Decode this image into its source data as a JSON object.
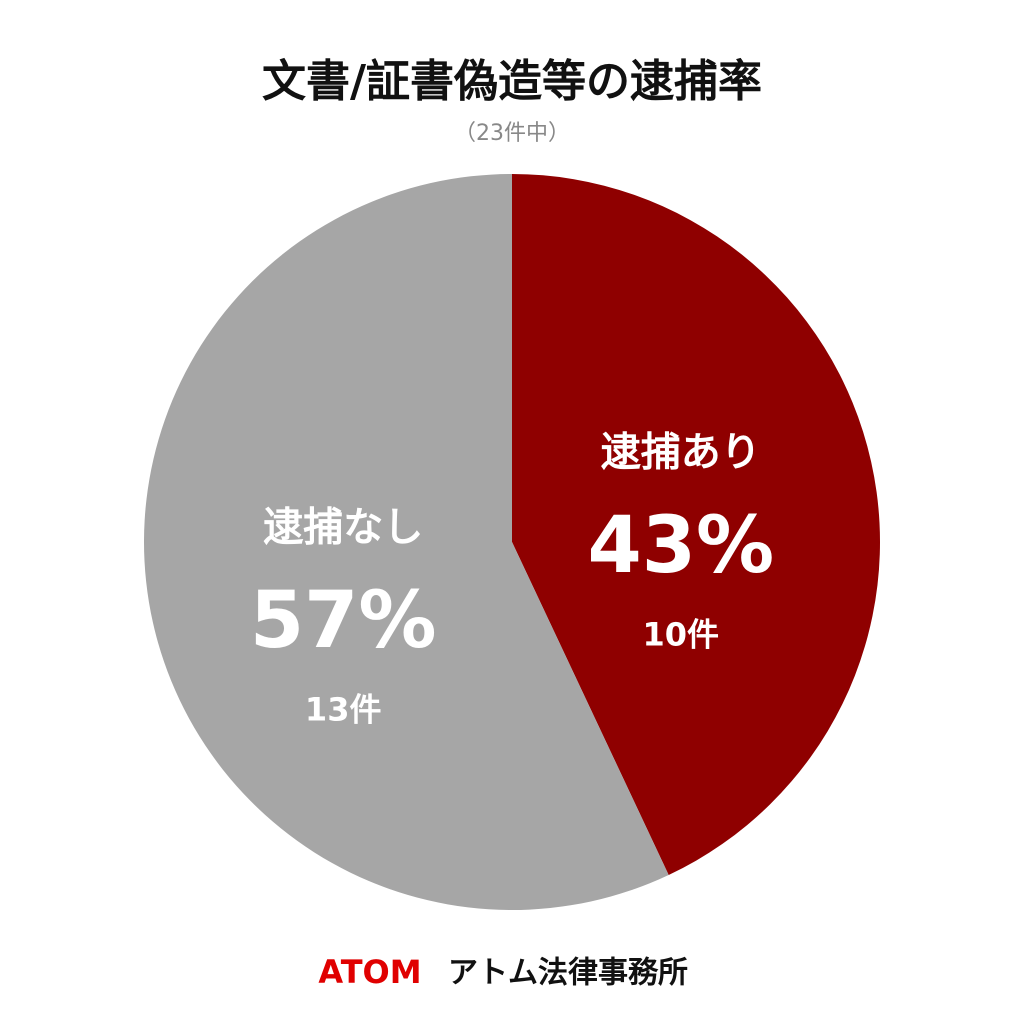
{
  "chart_data": {
    "type": "pie",
    "title": "文書/証書偽造等の逮捕率",
    "subtitle": "（23件中）",
    "categories": [
      "逮捕あり",
      "逮捕なし"
    ],
    "values": [
      43,
      57
    ],
    "value_labels": [
      "43%",
      "57%"
    ],
    "counts": [
      10,
      13
    ],
    "count_labels": [
      "10件",
      "13件"
    ],
    "colors": [
      "#8f0000",
      "#a6a6a6"
    ]
  },
  "footer": {
    "brand": "ATOM",
    "name": "アトム法律事務所"
  }
}
